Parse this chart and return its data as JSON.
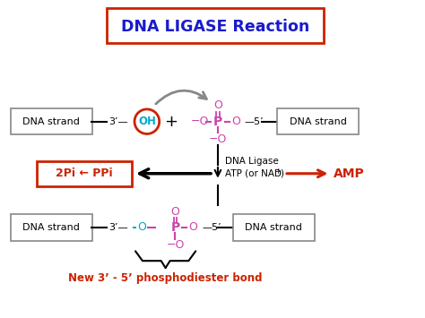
{
  "title": "DNA LIGASE Reaction",
  "title_color": "#1a1acc",
  "title_box_color": "#cc2200",
  "bg_color": "#ffffff",
  "left_box_text": "DNA strand",
  "right_box_text": "DNA strand",
  "phosphate_color": "#cc44aa",
  "oh_color": "#00aacc",
  "oh_circle_color": "#cc2200",
  "new_bond_color": "#00aacc",
  "ppi_box_color": "#cc2200",
  "amp_color": "#cc2200",
  "bottom_label_color": "#cc2200",
  "arrow_color": "#cc2200",
  "black": "#000000",
  "gray": "#888888"
}
